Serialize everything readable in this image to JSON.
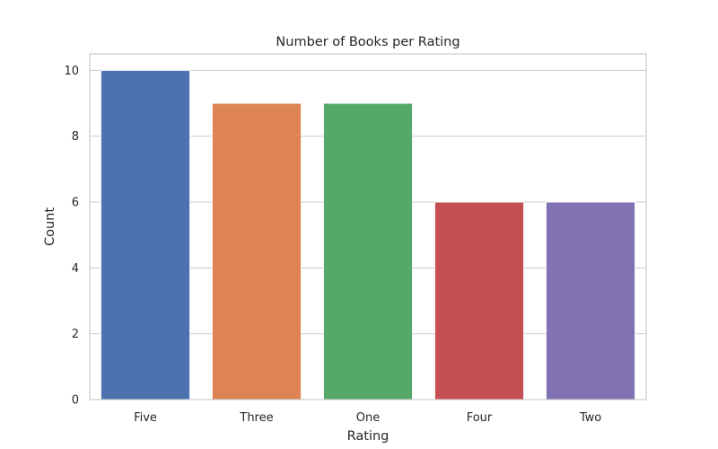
{
  "chart_data": {
    "type": "bar",
    "title": "Number of Books per Rating",
    "xlabel": "Rating",
    "ylabel": "Count",
    "categories": [
      "Five",
      "Three",
      "One",
      "Four",
      "Two"
    ],
    "values": [
      10,
      9,
      9,
      6,
      6
    ],
    "colors": [
      "#4c72b0",
      "#dd8452",
      "#55a868",
      "#c44e52",
      "#8172b3"
    ],
    "ylim": [
      0,
      10.5
    ],
    "yticks": [
      0,
      2,
      4,
      6,
      8,
      10
    ],
    "grid": true,
    "grid_axis": "y",
    "legend": "none"
  }
}
